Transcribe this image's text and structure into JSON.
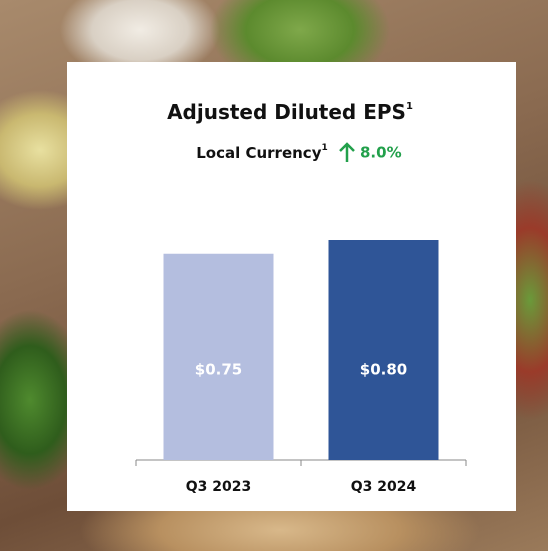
{
  "chart_data": {
    "type": "bar",
    "title": "Adjusted Diluted EPS",
    "title_note": "1",
    "subtitle": "Local Currency",
    "subtitle_note": "1",
    "annotation": "8.0%",
    "categories": [
      "Q3 2023",
      "Q3 2024"
    ],
    "values": [
      0.75,
      0.8
    ],
    "value_labels": [
      "$0.75",
      "$0.80"
    ],
    "colors": [
      "#b4bedf",
      "#2f5597"
    ]
  }
}
